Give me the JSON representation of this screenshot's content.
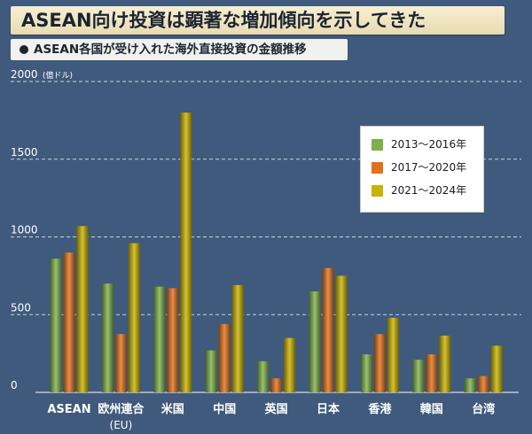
{
  "title": "ASEAN向け投資は顕著な増加傾向を示してきた",
  "subtitle": "ASEAN各国が受け入れた海外直接投資の金額推移",
  "colors": {
    "background": "#3f5a7c",
    "series": [
      "#7fb04a",
      "#e0721c",
      "#c9b200"
    ]
  },
  "chart_data": {
    "type": "bar",
    "ylabel": "(億ドル)",
    "ylim": [
      0,
      2000
    ],
    "yticks": [
      0,
      500,
      1000,
      1500,
      2000
    ],
    "grid": true,
    "legend_position": "top-right",
    "categories": [
      "ASEAN",
      "欧州連合",
      "米国",
      "中国",
      "英国",
      "日本",
      "香港",
      "韓国",
      "台湾"
    ],
    "category_sublabels": [
      "",
      "(EU)",
      "",
      "",
      "",
      "",
      "",
      "",
      ""
    ],
    "series": [
      {
        "name": "2013〜2016年",
        "values": [
          860,
          700,
          680,
          270,
          200,
          650,
          245,
          210,
          90
        ]
      },
      {
        "name": "2017〜2020年",
        "values": [
          900,
          375,
          670,
          440,
          90,
          800,
          375,
          245,
          105
        ]
      },
      {
        "name": "2021〜2024年",
        "values": [
          1070,
          960,
          1800,
          690,
          350,
          750,
          480,
          365,
          300
        ]
      }
    ]
  }
}
